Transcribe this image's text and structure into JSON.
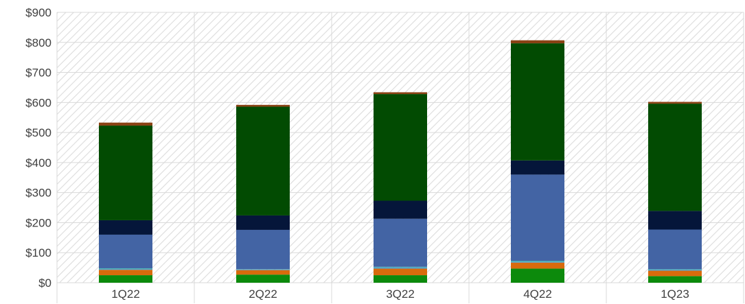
{
  "chart_data": {
    "type": "bar",
    "stacked": true,
    "title": "",
    "xlabel": "",
    "ylabel": "",
    "categories": [
      "1Q22",
      "2Q22",
      "3Q22",
      "4Q22",
      "1Q23"
    ],
    "ylim": [
      0,
      900
    ],
    "yticks": [
      0,
      100,
      200,
      300,
      400,
      500,
      600,
      700,
      800,
      900
    ],
    "ytick_labels": [
      "$0",
      "$100",
      "$200",
      "$300",
      "$400",
      "$500",
      "$600",
      "$700",
      "$800",
      "$900"
    ],
    "grid": true,
    "legend": "none",
    "series": [
      {
        "color": "#0c8a0c",
        "values": [
          25,
          27,
          25,
          47,
          22
        ]
      },
      {
        "color": "#d86b0c",
        "values": [
          18,
          15,
          22,
          20,
          18
        ]
      },
      {
        "color": "#4a9fd2",
        "values": [
          3,
          2,
          4,
          3,
          3
        ]
      },
      {
        "color": "#44b0a8",
        "values": [
          2,
          1,
          2,
          3,
          2
        ]
      },
      {
        "color": "#4364a4",
        "values": [
          112,
          131,
          160,
          287,
          132
        ]
      },
      {
        "color": "#05163a",
        "values": [
          48,
          48,
          60,
          47,
          62
        ]
      },
      {
        "color": "#024b02",
        "values": [
          315,
          362,
          355,
          390,
          357
        ]
      },
      {
        "color": "#8a4214",
        "values": [
          10,
          6,
          6,
          10,
          6
        ]
      }
    ]
  }
}
